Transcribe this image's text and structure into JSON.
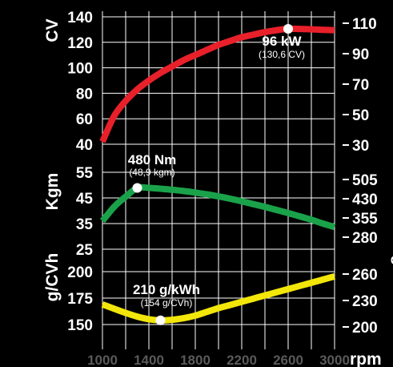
{
  "chart_data": {
    "type": "line",
    "x_axis": {
      "ticks": [
        1000,
        1200,
        1400,
        1600,
        1800,
        2000,
        2200,
        2400,
        2600,
        2800,
        3000
      ],
      "tick_labels": [
        "1000",
        "1400",
        "1800",
        "2200",
        "2600",
        "3000"
      ],
      "unit": "rpm",
      "xlim": [
        1000,
        3000
      ]
    },
    "panels": [
      {
        "id": "power",
        "left_unit": "CV",
        "right_unit": "kW",
        "left_ticks": [
          "140",
          "120",
          "100",
          "80",
          "60",
          "40"
        ],
        "left_ylim": [
          40,
          140
        ],
        "right_ticks": [
          "110",
          "90",
          "70",
          "50",
          "30"
        ],
        "right_ylim": [
          30,
          110
        ],
        "series": [
          {
            "color": "#e8202a",
            "x": [
              1000,
              1100,
              1200,
              1300,
              1400,
              1500,
              1600,
              1700,
              1800,
              1900,
              2000,
              2100,
              2200,
              2300,
              2400,
              2500,
              2600,
              2700,
              2800,
              2900,
              3000
            ],
            "y": [
              42,
              62,
              74,
              83,
              90,
              96,
              101,
              106,
              110,
              114,
              118,
              121,
              124,
              126,
              128,
              129.5,
              130.6,
              130.5,
              130.2,
              129.8,
              129.5
            ]
          }
        ],
        "annotation": {
          "x": 2600,
          "y": 130.6,
          "label": "96 kW",
          "sublabel": "(130,6 CV)"
        }
      },
      {
        "id": "torque",
        "left_unit": "Kgm",
        "right_unit": "Nm",
        "left_ticks": [
          "55",
          "45",
          "35",
          "25"
        ],
        "left_ylim": [
          25,
          55
        ],
        "right_ticks": [
          "505",
          "430",
          "355",
          "280"
        ],
        "right_ylim": [
          280,
          505
        ],
        "series": [
          {
            "color": "#1aa24a",
            "x": [
              1000,
              1100,
              1200,
              1300,
              1400,
              1500,
              1600,
              1700,
              1800,
              1900,
              2000,
              2100,
              2200,
              2300,
              2400,
              2500,
              2600,
              2700,
              2800,
              2900,
              3000
            ],
            "y": [
              36,
              41.5,
              45.5,
              48.9,
              48.9,
              48.6,
              48.2,
              47.7,
              47.1,
              46.4,
              45.6,
              44.7,
              43.7,
              42.6,
              41.5,
              40.3,
              39.1,
              37.8,
              36.5,
              35.0,
              33.6
            ]
          }
        ],
        "annotation": {
          "x": 1300,
          "y": 48.9,
          "label": "480 Nm",
          "sublabel": "(48,9 kgm)"
        }
      },
      {
        "id": "consumption",
        "left_unit": "g/CVh",
        "right_unit": "g/kWh",
        "left_ticks": [
          "200",
          "175",
          "150"
        ],
        "left_ylim": [
          150,
          200
        ],
        "right_ticks": [
          "260",
          "230",
          "200"
        ],
        "right_ylim": [
          200,
          260
        ],
        "series": [
          {
            "color": "#f2e60a",
            "x": [
              1000,
              1100,
              1200,
              1300,
              1400,
              1500,
              1600,
              1700,
              1800,
              1900,
              2000,
              2100,
              2200,
              2300,
              2400,
              2500,
              2600,
              2700,
              2800,
              2900,
              3000
            ],
            "y": [
              169,
              165,
              161,
              157.5,
              155,
              154,
              154.5,
              156,
              158.5,
              162,
              165.5,
              168.5,
              171.5,
              174.5,
              177.5,
              180.5,
              183.5,
              186.5,
              189.5,
              192.5,
              195.5
            ]
          }
        ],
        "annotation": {
          "x": 1500,
          "y": 154,
          "label": "210 g/kWh",
          "sublabel": "(154 g/CVh)"
        }
      }
    ]
  },
  "colors": {
    "background": "#000000",
    "grid": "#ffffff",
    "text": "#ffffff",
    "x_tick_text": "#5a5a5a"
  }
}
